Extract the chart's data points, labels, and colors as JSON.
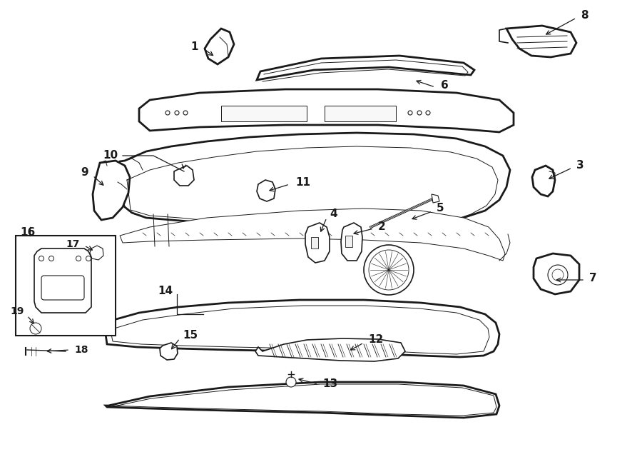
{
  "bg_color": "#ffffff",
  "line_color": "#1a1a1a",
  "lw": 1.2,
  "lw_thick": 2.0,
  "lw_thin": 0.7,
  "label_fs": 11,
  "label_fs_small": 10,
  "parts_labels": {
    "1": [
      295,
      68,
      310,
      80
    ],
    "2": [
      522,
      318,
      505,
      328
    ],
    "3": [
      800,
      232,
      780,
      252
    ],
    "4": [
      455,
      302,
      447,
      322
    ],
    "5": [
      604,
      294,
      582,
      310
    ],
    "6": [
      615,
      120,
      590,
      115
    ],
    "7": [
      820,
      388,
      795,
      392
    ],
    "8": [
      812,
      24,
      778,
      52
    ],
    "9": [
      132,
      242,
      152,
      258
    ],
    "10": [
      248,
      215,
      260,
      240
    ],
    "11": [
      405,
      258,
      382,
      270
    ],
    "12": [
      510,
      478,
      492,
      495
    ],
    "13": [
      448,
      538,
      422,
      534
    ],
    "14": [
      245,
      412,
      260,
      438
    ],
    "15": [
      253,
      472,
      240,
      490
    ],
    "16": [
      62,
      315,
      90,
      330
    ],
    "17": [
      118,
      344,
      128,
      355
    ],
    "18": [
      100,
      432,
      80,
      430
    ],
    "19": [
      38,
      360,
      50,
      380
    ]
  }
}
